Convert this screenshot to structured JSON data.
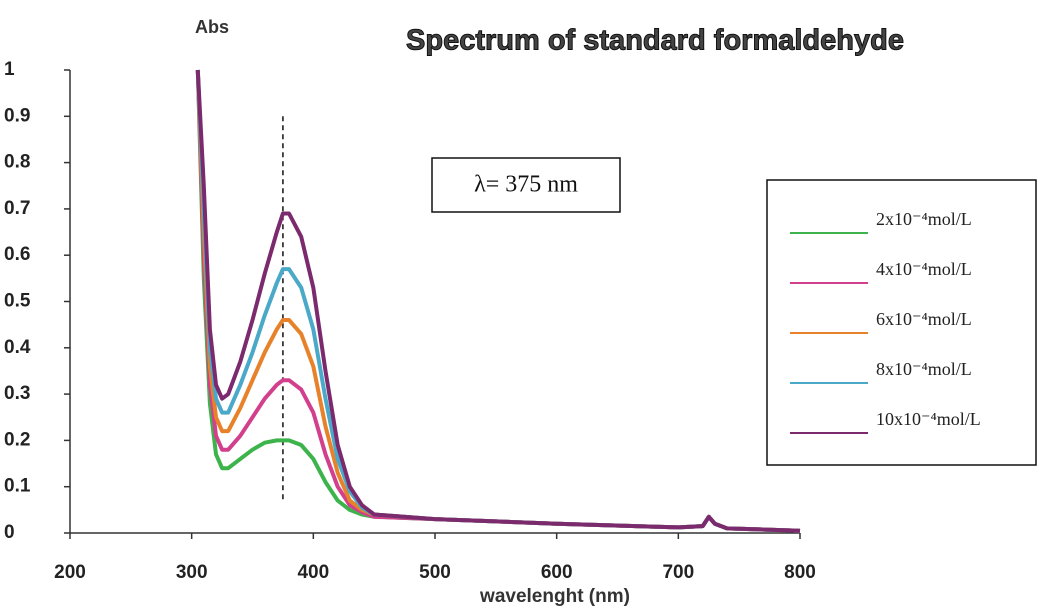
{
  "chart_data": {
    "type": "line",
    "title": "Spectrum of  standard formaldehyde",
    "y_label": "Abs",
    "x_label": "wavelenght (nm)",
    "marker": {
      "x": 375,
      "label": "λ= 375 nm"
    },
    "x": [
      305,
      310,
      315,
      320,
      325,
      330,
      340,
      350,
      360,
      370,
      375,
      380,
      390,
      400,
      410,
      420,
      430,
      440,
      450,
      500,
      600,
      700,
      720,
      725,
      730,
      740,
      800
    ],
    "series": [
      {
        "name": "2x10⁻⁴mol/L",
        "color": "#3cb44b",
        "values": [
          1.0,
          0.55,
          0.28,
          0.17,
          0.14,
          0.14,
          0.16,
          0.18,
          0.195,
          0.2,
          0.2,
          0.2,
          0.19,
          0.16,
          0.11,
          0.07,
          0.05,
          0.04,
          0.035,
          0.03,
          0.02,
          0.012,
          0.015,
          0.035,
          0.02,
          0.01,
          0.005
        ]
      },
      {
        "name": "4x10⁻⁴mol/L",
        "color": "#d23f8c",
        "values": [
          1.0,
          0.6,
          0.32,
          0.21,
          0.18,
          0.18,
          0.21,
          0.25,
          0.29,
          0.32,
          0.33,
          0.33,
          0.31,
          0.26,
          0.17,
          0.1,
          0.06,
          0.045,
          0.035,
          0.03,
          0.02,
          0.012,
          0.015,
          0.035,
          0.02,
          0.01,
          0.005
        ]
      },
      {
        "name": "6x10⁻⁴mol/L",
        "color": "#e8822a",
        "values": [
          1.0,
          0.65,
          0.36,
          0.25,
          0.22,
          0.22,
          0.27,
          0.33,
          0.39,
          0.44,
          0.46,
          0.46,
          0.43,
          0.36,
          0.23,
          0.13,
          0.07,
          0.05,
          0.04,
          0.03,
          0.02,
          0.012,
          0.015,
          0.035,
          0.02,
          0.01,
          0.005
        ]
      },
      {
        "name": "8x10⁻⁴mol/L",
        "color": "#4aa8c8",
        "values": [
          1.0,
          0.7,
          0.4,
          0.29,
          0.26,
          0.26,
          0.32,
          0.39,
          0.47,
          0.54,
          0.57,
          0.57,
          0.53,
          0.44,
          0.29,
          0.16,
          0.09,
          0.055,
          0.04,
          0.03,
          0.02,
          0.012,
          0.015,
          0.035,
          0.02,
          0.01,
          0.005
        ]
      },
      {
        "name": "10x10⁻⁴mol/L",
        "color": "#7b2a6e",
        "values": [
          1.0,
          0.75,
          0.44,
          0.32,
          0.29,
          0.3,
          0.37,
          0.46,
          0.56,
          0.65,
          0.69,
          0.69,
          0.64,
          0.53,
          0.35,
          0.19,
          0.1,
          0.06,
          0.04,
          0.03,
          0.02,
          0.012,
          0.015,
          0.035,
          0.02,
          0.01,
          0.005
        ]
      }
    ],
    "xlim": [
      200,
      800
    ],
    "xticks": [
      200,
      300,
      400,
      500,
      600,
      700,
      800
    ],
    "ylim": [
      0,
      1
    ],
    "yticks": [
      0,
      0.1,
      0.2,
      0.3,
      0.4,
      0.5,
      0.6,
      0.7,
      0.8,
      0.9,
      1
    ]
  }
}
